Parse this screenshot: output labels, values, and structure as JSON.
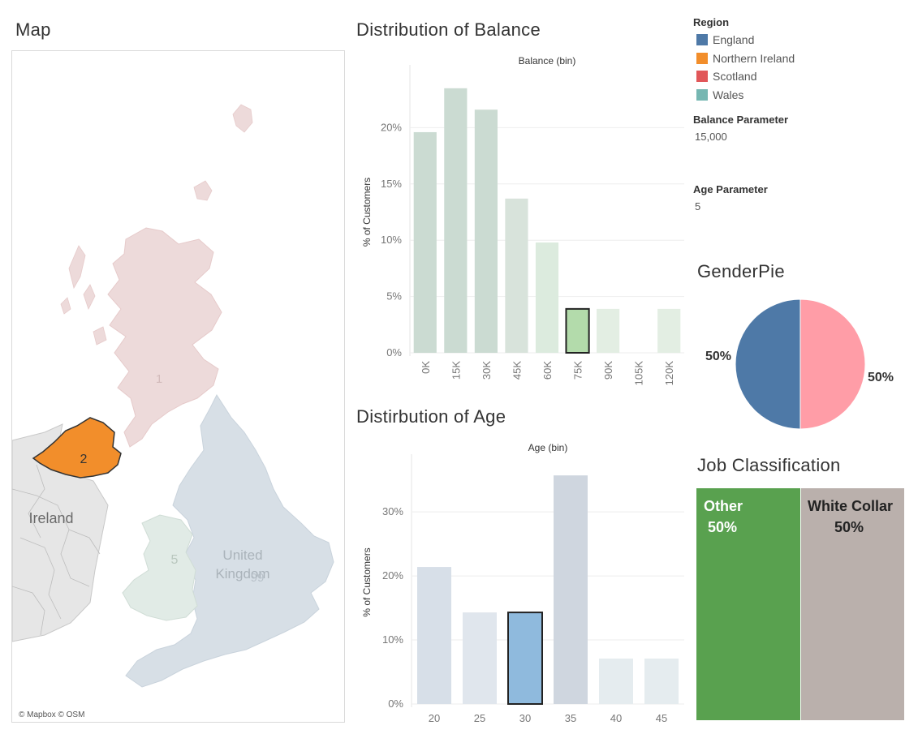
{
  "map": {
    "title": "Map",
    "country_labels": [
      "Ireland",
      "United",
      "Kingdom"
    ],
    "region_labels": {
      "scotland": "1",
      "northern_ireland": "2",
      "wales": "5",
      "england": "99"
    },
    "attribution": "© Mapbox © OSM",
    "colors": {
      "england": "#d7dfe6",
      "northern_ireland": "#f28e2b",
      "scotland": "#eddada",
      "wales": "#e1ebe6",
      "ireland": "#e6e6e6",
      "sea": "#ffffff"
    }
  },
  "legend": {
    "title": "Region",
    "items": [
      {
        "label": "England",
        "color": "#4e79a7"
      },
      {
        "label": "Northern Ireland",
        "color": "#f28e2b"
      },
      {
        "label": "Scotland",
        "color": "#e15759"
      },
      {
        "label": "Wales",
        "color": "#76b7b2"
      }
    ]
  },
  "parameters": {
    "balance": {
      "title": "Balance Parameter",
      "value": "15,000"
    },
    "age": {
      "title": "Age Parameter",
      "value": "5"
    }
  },
  "chart_data": [
    {
      "type": "bar",
      "title": "Distribution of Balance",
      "subtitle": "Balance (bin)",
      "ylabel": "% of Customers",
      "categories": [
        "0K",
        "15K",
        "30K",
        "45K",
        "60K",
        "75K",
        "90K",
        "105K",
        "120K"
      ],
      "values": [
        19.6,
        23.5,
        21.6,
        13.7,
        9.8,
        3.9,
        3.9,
        0,
        3.9
      ],
      "yticks": [
        0,
        5,
        10,
        15,
        20
      ],
      "ytick_labels": [
        "0%",
        "5%",
        "10%",
        "15%",
        "20%"
      ],
      "ylim": [
        0,
        25
      ],
      "highlight_index": 5,
      "colors": [
        "#cbdbd2",
        "#cbdbd2",
        "#cbdbd2",
        "#d8e3db",
        "#dcebde",
        "#b3dbab",
        "#e3eee3",
        "#e3eee3",
        "#e3eee3"
      ],
      "highlight_color": "#b3dbab",
      "grid": true
    },
    {
      "type": "bar",
      "title": "Distirbution of Age",
      "subtitle": "Age (bin)",
      "ylabel": "% of Customers",
      "categories": [
        "20",
        "25",
        "30",
        "35",
        "40",
        "45"
      ],
      "values": [
        21.4,
        14.3,
        14.3,
        35.7,
        7.1,
        7.1
      ],
      "yticks": [
        0,
        10,
        20,
        30
      ],
      "ytick_labels": [
        "0%",
        "10%",
        "20%",
        "30%"
      ],
      "ylim": [
        0,
        38
      ],
      "highlight_index": 2,
      "colors": [
        "#d7dfe8",
        "#e0e6ed",
        "#8fbadd",
        "#cfd6df",
        "#e5ecef",
        "#e5ecef"
      ],
      "highlight_color": "#8fbadd",
      "grid": true
    },
    {
      "type": "pie",
      "title": "GenderPie",
      "slices": [
        {
          "value": 50,
          "label": "50%",
          "color": "#4e79a7"
        },
        {
          "value": 50,
          "label": "50%",
          "color": "#ff9da7"
        }
      ]
    },
    {
      "type": "treemap",
      "title": "Job Classification",
      "items": [
        {
          "name": "Other",
          "value": 50,
          "label": "50%",
          "color": "#59a14f",
          "text_color": "#ffffff"
        },
        {
          "name": "White Collar",
          "value": 50,
          "label": "50%",
          "color": "#bab0ac",
          "text_color": "#222222"
        }
      ]
    }
  ]
}
